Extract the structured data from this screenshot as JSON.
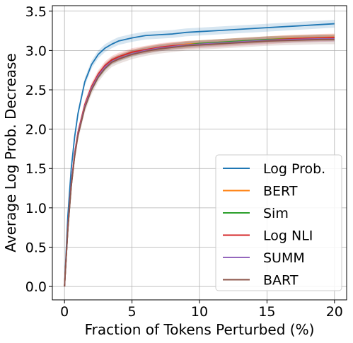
{
  "chart_data": {
    "type": "line",
    "title": "",
    "xlabel": "Fraction of Tokens Perturbed (%)",
    "ylabel": "Average Log Prob. Decrease",
    "xlim": [
      -0.9,
      20.9
    ],
    "ylim": [
      -0.17,
      3.57
    ],
    "xticks": [
      0,
      5,
      10,
      15,
      20
    ],
    "yticks": [
      0.0,
      0.5,
      1.0,
      1.5,
      2.0,
      2.5,
      3.0,
      3.5
    ],
    "xtick_labels": [
      "0",
      "5",
      "10",
      "15",
      "20"
    ],
    "ytick_labels": [
      "0.0",
      "0.5",
      "1.0",
      "1.5",
      "2.0",
      "2.5",
      "3.0",
      "3.5"
    ],
    "grid": true,
    "legend_position": "lower right",
    "series": [
      {
        "name": "Log Prob.",
        "color": "#1f77b4",
        "band": 0.05,
        "x": [
          0,
          0.25,
          0.5,
          0.75,
          1,
          1.5,
          2,
          2.5,
          3,
          3.5,
          4,
          5,
          6,
          7,
          8,
          9,
          10,
          11,
          12,
          13,
          14,
          15,
          16,
          17,
          18,
          19,
          20
        ],
        "y": [
          0,
          0.9,
          1.5,
          1.9,
          2.2,
          2.6,
          2.82,
          2.95,
          3.03,
          3.08,
          3.12,
          3.16,
          3.19,
          3.2,
          3.21,
          3.23,
          3.24,
          3.25,
          3.26,
          3.27,
          3.28,
          3.29,
          3.3,
          3.31,
          3.32,
          3.33,
          3.34
        ]
      },
      {
        "name": "BERT",
        "color": "#ff7f0e",
        "band": 0.04,
        "x": [
          0,
          0.25,
          0.5,
          0.75,
          1,
          1.5,
          2,
          2.5,
          3,
          3.5,
          4,
          5,
          6,
          7,
          8,
          9,
          10,
          11,
          12,
          13,
          14,
          15,
          16,
          17,
          18,
          19,
          20
        ],
        "y": [
          0,
          0.75,
          1.3,
          1.68,
          1.95,
          2.3,
          2.53,
          2.69,
          2.8,
          2.87,
          2.91,
          2.97,
          3.01,
          3.04,
          3.06,
          3.08,
          3.09,
          3.1,
          3.11,
          3.12,
          3.13,
          3.14,
          3.15,
          3.155,
          3.16,
          3.165,
          3.17
        ]
      },
      {
        "name": "Sim",
        "color": "#2ca02c",
        "band": 0.04,
        "x": [
          0,
          0.25,
          0.5,
          0.75,
          1,
          1.5,
          2,
          2.5,
          3,
          3.5,
          4,
          5,
          6,
          7,
          8,
          9,
          10,
          11,
          12,
          13,
          14,
          15,
          16,
          17,
          18,
          19,
          20
        ],
        "y": [
          0,
          0.74,
          1.28,
          1.66,
          1.93,
          2.28,
          2.51,
          2.67,
          2.78,
          2.86,
          2.9,
          2.96,
          3.0,
          3.03,
          3.05,
          3.07,
          3.09,
          3.1,
          3.11,
          3.12,
          3.13,
          3.14,
          3.145,
          3.15,
          3.155,
          3.16,
          3.16
        ]
      },
      {
        "name": "Log NLI",
        "color": "#d62728",
        "band": 0.05,
        "x": [
          0,
          0.25,
          0.5,
          0.75,
          1,
          1.5,
          2,
          2.5,
          3,
          3.5,
          4,
          5,
          6,
          7,
          8,
          9,
          10,
          11,
          12,
          13,
          14,
          15,
          16,
          17,
          18,
          19,
          20
        ],
        "y": [
          0,
          0.76,
          1.31,
          1.69,
          1.96,
          2.31,
          2.54,
          2.7,
          2.81,
          2.88,
          2.92,
          2.98,
          3.01,
          3.04,
          3.06,
          3.07,
          3.08,
          3.09,
          3.1,
          3.11,
          3.12,
          3.13,
          3.14,
          3.15,
          3.155,
          3.16,
          3.165
        ]
      },
      {
        "name": "SUMM",
        "color": "#9467bd",
        "band": 0.04,
        "x": [
          0,
          0.25,
          0.5,
          0.75,
          1,
          1.5,
          2,
          2.5,
          3,
          3.5,
          4,
          5,
          6,
          7,
          8,
          9,
          10,
          11,
          12,
          13,
          14,
          15,
          16,
          17,
          18,
          19,
          20
        ],
        "y": [
          0,
          0.74,
          1.29,
          1.67,
          1.94,
          2.29,
          2.52,
          2.68,
          2.79,
          2.86,
          2.9,
          2.96,
          3.0,
          3.03,
          3.05,
          3.07,
          3.08,
          3.09,
          3.1,
          3.11,
          3.12,
          3.13,
          3.135,
          3.14,
          3.145,
          3.15,
          3.15
        ]
      },
      {
        "name": "BART",
        "color": "#8c564b",
        "band": 0.06,
        "x": [
          0,
          0.25,
          0.5,
          0.75,
          1,
          1.5,
          2,
          2.5,
          3,
          3.5,
          4,
          5,
          6,
          7,
          8,
          9,
          10,
          11,
          12,
          13,
          14,
          15,
          16,
          17,
          18,
          19,
          20
        ],
        "y": [
          0,
          0.73,
          1.27,
          1.65,
          1.92,
          2.27,
          2.5,
          2.66,
          2.77,
          2.85,
          2.89,
          2.95,
          2.99,
          3.02,
          3.04,
          3.06,
          3.07,
          3.08,
          3.09,
          3.1,
          3.11,
          3.12,
          3.125,
          3.13,
          3.135,
          3.14,
          3.14
        ]
      }
    ]
  }
}
